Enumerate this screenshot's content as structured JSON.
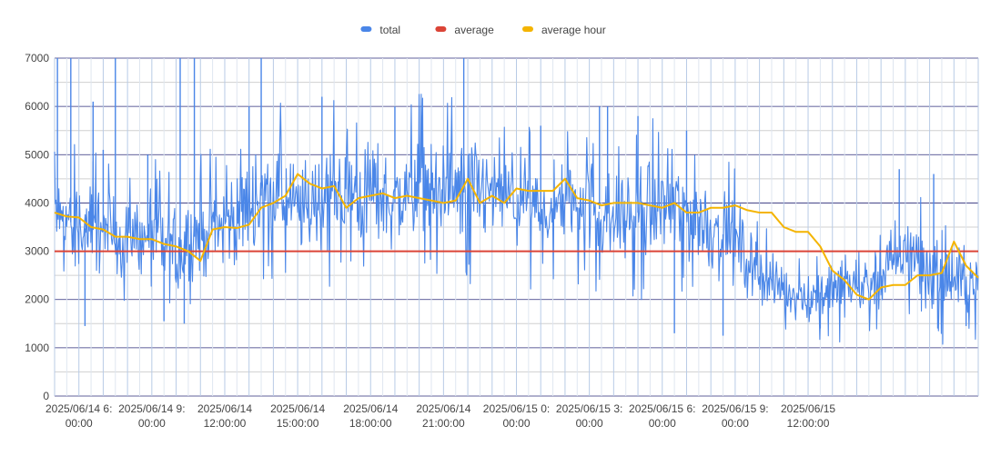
{
  "chart_data": {
    "type": "line",
    "title": "",
    "xlabel": "",
    "ylabel": "",
    "ylim": [
      0,
      7000
    ],
    "yticks": [
      0,
      1000,
      2000,
      3000,
      4000,
      5000,
      6000,
      7000
    ],
    "xlim": [
      "2025-06-14T05:00",
      "2025-06-15T19:00"
    ],
    "x_ticks": [
      {
        "lines": [
          "2025/06/14 6:",
          "00:00"
        ]
      },
      {
        "lines": [
          "2025/06/14 9:",
          "00:00"
        ]
      },
      {
        "lines": [
          "2025/06/14",
          "12:00:00"
        ]
      },
      {
        "lines": [
          "2025/06/14",
          "15:00:00"
        ]
      },
      {
        "lines": [
          "2025/06/14",
          "18:00:00"
        ]
      },
      {
        "lines": [
          "2025/06/14",
          "21:00:00"
        ]
      },
      {
        "lines": [
          "2025/06/15 0:",
          "00:00"
        ]
      },
      {
        "lines": [
          "2025/06/15 3:",
          "00:00"
        ]
      },
      {
        "lines": [
          "2025/06/15 6:",
          "00:00"
        ]
      },
      {
        "lines": [
          "2025/06/15 9:",
          "00:00"
        ]
      },
      {
        "lines": [
          "2025/06/15",
          "12:00:00"
        ]
      }
    ],
    "grid": true,
    "legend_position": "top",
    "series": [
      {
        "name": "total",
        "color": "#4a86e8",
        "note": "noisy high-frequency series; approximate hourly centre level and spread shown",
        "x": [
          "2025-06-14T05:00",
          "2025-06-14T06:00",
          "2025-06-14T07:00",
          "2025-06-14T08:00",
          "2025-06-14T09:00",
          "2025-06-14T10:00",
          "2025-06-14T11:00",
          "2025-06-14T12:00",
          "2025-06-14T13:00",
          "2025-06-14T14:00",
          "2025-06-14T15:00",
          "2025-06-14T16:00",
          "2025-06-14T17:00",
          "2025-06-14T18:00",
          "2025-06-14T19:00",
          "2025-06-14T20:00",
          "2025-06-14T21:00",
          "2025-06-14T22:00",
          "2025-06-14T23:00",
          "2025-06-15T00:00",
          "2025-06-15T01:00",
          "2025-06-15T02:00",
          "2025-06-15T03:00",
          "2025-06-15T04:00",
          "2025-06-15T05:00",
          "2025-06-15T06:00",
          "2025-06-15T07:00",
          "2025-06-15T08:00",
          "2025-06-15T09:00",
          "2025-06-15T10:00",
          "2025-06-15T11:00",
          "2025-06-15T12:00",
          "2025-06-15T13:00",
          "2025-06-15T14:00",
          "2025-06-15T15:00",
          "2025-06-15T16:00",
          "2025-06-15T17:00",
          "2025-06-15T18:00",
          "2025-06-15T19:00"
        ],
        "values": [
          3800,
          3500,
          3400,
          3250,
          3200,
          3000,
          3400,
          3500,
          4000,
          4300,
          3800,
          4100,
          4200,
          4300,
          4000,
          4400,
          4300,
          4200,
          4200,
          4000,
          3800,
          4000,
          4000,
          3700,
          3800,
          3900,
          3800,
          3500,
          3200,
          2500,
          2200,
          2000,
          2300,
          2300,
          2500,
          3000,
          2600,
          2400,
          2400
        ],
        "spread": [
          700,
          900,
          800,
          900,
          900,
          1000,
          900,
          800,
          1000,
          1100,
          900,
          1000,
          1000,
          1000,
          900,
          1000,
          1000,
          1000,
          900,
          900,
          900,
          900,
          900,
          900,
          900,
          1000,
          900,
          900,
          800,
          600,
          500,
          500,
          600,
          600,
          700,
          800,
          800,
          700,
          600
        ],
        "spikes": [
          [
            "2025-06-14T05:07",
            7000
          ],
          [
            "2025-06-14T05:40",
            7000
          ],
          [
            "2025-06-14T06:35",
            6100
          ],
          [
            "2025-06-14T07:00",
            5100
          ],
          [
            "2025-06-14T07:30",
            7000
          ],
          [
            "2025-06-14T08:50",
            5000
          ],
          [
            "2025-06-14T10:10",
            7000
          ],
          [
            "2025-06-14T10:45",
            7000
          ],
          [
            "2025-06-14T13:00",
            6000
          ],
          [
            "2025-06-14T13:30",
            7000
          ],
          [
            "2025-06-14T16:00",
            6200
          ],
          [
            "2025-06-14T19:00",
            6000
          ],
          [
            "2025-06-14T20:00",
            6000
          ],
          [
            "2025-06-14T21:50",
            7000
          ],
          [
            "2025-06-15T01:00",
            5600
          ],
          [
            "2025-06-15T03:25",
            6000
          ],
          [
            "2025-06-15T03:45",
            6000
          ],
          [
            "2025-06-15T05:00",
            5800
          ],
          [
            "2025-06-15T07:00",
            5500
          ],
          [
            "2025-06-15T15:45",
            4700
          ],
          [
            "2025-06-15T17:10",
            4600
          ]
        ],
        "dips": [
          [
            "2025-06-14T06:15",
            1450
          ],
          [
            "2025-06-14T09:30",
            1550
          ],
          [
            "2025-06-14T10:20",
            1500
          ],
          [
            "2025-06-15T06:30",
            1300
          ],
          [
            "2025-06-15T08:30",
            1250
          ],
          [
            "2025-06-15T12:30",
            1400
          ],
          [
            "2025-06-15T17:20",
            1400
          ],
          [
            "2025-06-15T18:30",
            1450
          ]
        ]
      },
      {
        "name": "average",
        "color": "#db4437",
        "x": [
          "2025-06-14T05:00",
          "2025-06-15T19:00"
        ],
        "values": [
          3000,
          3000
        ]
      },
      {
        "name": "average hour",
        "color": "#f4b400",
        "x": [
          "2025-06-14T05:00",
          "2025-06-14T05:30",
          "2025-06-14T06:00",
          "2025-06-14T06:30",
          "2025-06-14T07:00",
          "2025-06-14T07:30",
          "2025-06-14T08:00",
          "2025-06-14T08:30",
          "2025-06-14T09:00",
          "2025-06-14T09:30",
          "2025-06-14T10:00",
          "2025-06-14T10:30",
          "2025-06-14T11:00",
          "2025-06-14T11:30",
          "2025-06-14T12:00",
          "2025-06-14T12:30",
          "2025-06-14T13:00",
          "2025-06-14T13:30",
          "2025-06-14T14:00",
          "2025-06-14T14:30",
          "2025-06-14T15:00",
          "2025-06-14T15:30",
          "2025-06-14T16:00",
          "2025-06-14T16:30",
          "2025-06-14T17:00",
          "2025-06-14T17:30",
          "2025-06-14T18:00",
          "2025-06-14T18:30",
          "2025-06-14T19:00",
          "2025-06-14T19:30",
          "2025-06-14T20:00",
          "2025-06-14T20:30",
          "2025-06-14T21:00",
          "2025-06-14T21:30",
          "2025-06-14T22:00",
          "2025-06-14T22:30",
          "2025-06-14T23:00",
          "2025-06-14T23:30",
          "2025-06-15T00:00",
          "2025-06-15T00:30",
          "2025-06-15T01:00",
          "2025-06-15T01:30",
          "2025-06-15T02:00",
          "2025-06-15T02:30",
          "2025-06-15T03:00",
          "2025-06-15T03:30",
          "2025-06-15T04:00",
          "2025-06-15T04:30",
          "2025-06-15T05:00",
          "2025-06-15T05:30",
          "2025-06-15T06:00",
          "2025-06-15T06:30",
          "2025-06-15T07:00",
          "2025-06-15T07:30",
          "2025-06-15T08:00",
          "2025-06-15T08:30",
          "2025-06-15T09:00",
          "2025-06-15T09:30",
          "2025-06-15T10:00",
          "2025-06-15T10:30",
          "2025-06-15T11:00",
          "2025-06-15T11:30",
          "2025-06-15T12:00",
          "2025-06-15T12:30",
          "2025-06-15T13:00",
          "2025-06-15T13:30",
          "2025-06-15T14:00",
          "2025-06-15T14:30",
          "2025-06-15T15:00",
          "2025-06-15T15:30",
          "2025-06-15T16:00",
          "2025-06-15T16:30",
          "2025-06-15T17:00",
          "2025-06-15T17:30",
          "2025-06-15T18:00",
          "2025-06-15T18:30",
          "2025-06-15T19:00"
        ],
        "values": [
          3800,
          3720,
          3700,
          3500,
          3450,
          3300,
          3300,
          3250,
          3250,
          3150,
          3100,
          3000,
          2800,
          3450,
          3500,
          3480,
          3550,
          3900,
          4000,
          4150,
          4600,
          4400,
          4300,
          4350,
          3900,
          4100,
          4150,
          4200,
          4100,
          4150,
          4100,
          4050,
          4000,
          4050,
          4500,
          4000,
          4150,
          4000,
          4300,
          4250,
          4250,
          4250,
          4500,
          4100,
          4050,
          3950,
          4000,
          4000,
          4000,
          3950,
          3900,
          4000,
          3800,
          3800,
          3900,
          3900,
          3950,
          3850,
          3800,
          3800,
          3500,
          3400,
          3400,
          3100,
          2600,
          2400,
          2100,
          2000,
          2250,
          2300,
          2300,
          2500,
          2500,
          2550,
          3200,
          2700,
          2450
        ]
      }
    ]
  }
}
